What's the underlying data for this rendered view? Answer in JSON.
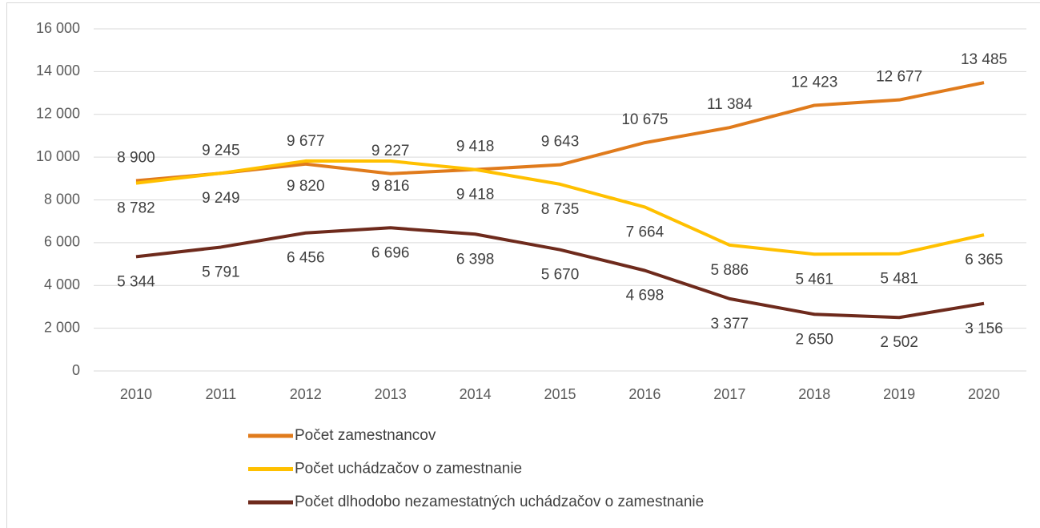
{
  "chart_data": {
    "type": "line",
    "categories": [
      "2010",
      "2011",
      "2012",
      "2013",
      "2014",
      "2015",
      "2016",
      "2017",
      "2018",
      "2019",
      "2020"
    ],
    "ylim": [
      0,
      16000
    ],
    "yticks": [
      0,
      {
        "value": 2000,
        "label": "2 000"
      },
      {
        "value": 4000,
        "label": "4 000"
      },
      {
        "value": 6000,
        "label": "6 000"
      },
      {
        "value": 8000,
        "label": "8 000"
      },
      {
        "value": 10000,
        "label": "10 000"
      },
      {
        "value": 12000,
        "label": "12 000"
      },
      {
        "value": 14000,
        "label": "14 000"
      },
      {
        "value": 16000,
        "label": "16 000"
      }
    ],
    "grid": true,
    "legend": "bottom",
    "series": [
      {
        "name": "Počet zamestnancov",
        "color": "#e07b1c",
        "values": [
          8900,
          9245,
          9677,
          9227,
          9418,
          9643,
          10675,
          11384,
          12423,
          12677,
          13485
        ],
        "value_labels": [
          "8 900",
          "9 245",
          "9 677",
          "9 227",
          "9 418",
          "9 643",
          "10 675",
          "11 384",
          "12 423",
          "12 677",
          "13 485"
        ]
      },
      {
        "name": "Počet uchádzačov o zamestnanie",
        "color": "#ffc000",
        "values": [
          8782,
          9249,
          9820,
          9816,
          9418,
          8735,
          7664,
          5886,
          5461,
          5481,
          6365
        ],
        "value_labels": [
          "8 782",
          "9 249",
          "9 820",
          "9 816",
          "9 418",
          "8 735",
          "7 664",
          "5 886",
          "5 461",
          "5 481",
          "6 365"
        ]
      },
      {
        "name": "Počet dlhodobo nezamestatných uchádzačov o zamestnanie",
        "color": "#6e2a1c",
        "values": [
          5344,
          5791,
          6456,
          6696,
          6398,
          5670,
          4698,
          3377,
          2650,
          2502,
          3156
        ],
        "value_labels": [
          "5 344",
          "5 791",
          "6 456",
          "6 696",
          "6 398",
          "5 670",
          "4 698",
          "3 377",
          "2 650",
          "2 502",
          "3 156"
        ]
      }
    ]
  }
}
